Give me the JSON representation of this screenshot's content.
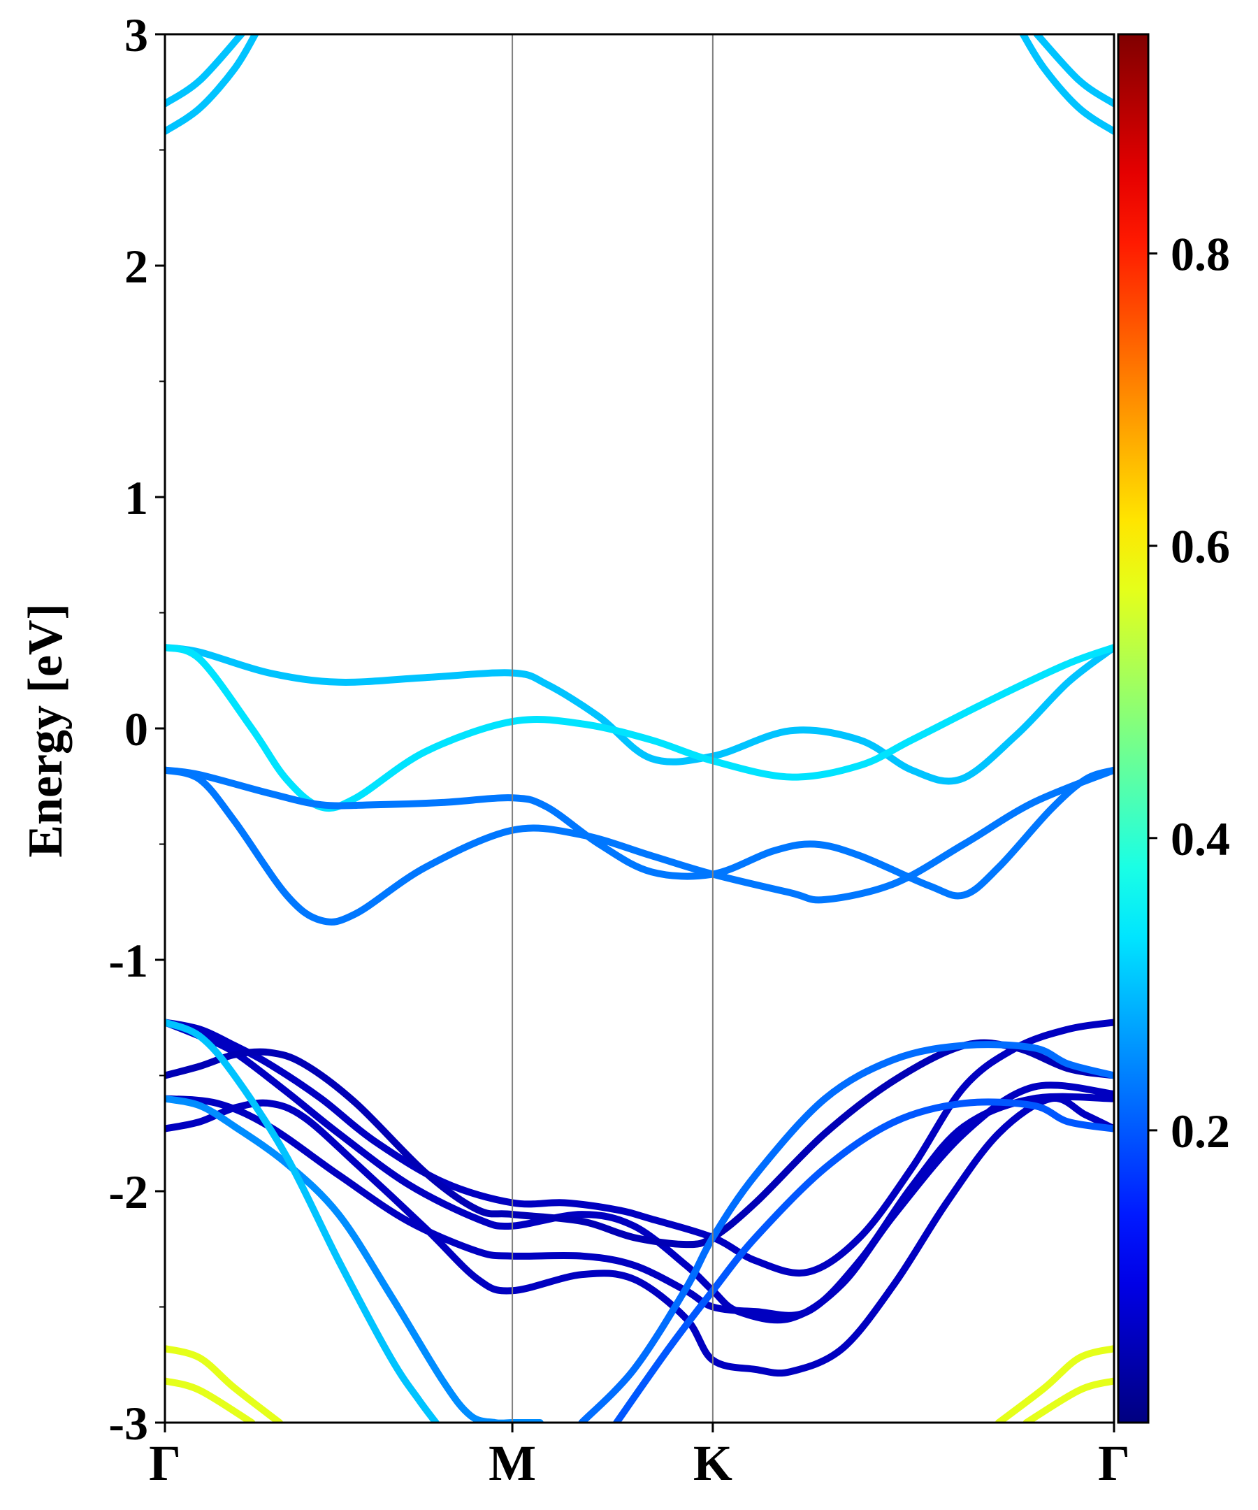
{
  "chart_data": {
    "type": "line",
    "title": "",
    "ylabel": "Energy [eV]",
    "xlabel": "",
    "ylim": [
      -3,
      3
    ],
    "x_ticks": [
      {
        "label": "Γ",
        "x": 0.0
      },
      {
        "label": "M",
        "x": 1.0
      },
      {
        "label": "K",
        "x": 1.577
      },
      {
        "label": "Γ",
        "x": 2.732
      }
    ],
    "y_ticks": [
      -3,
      -2,
      -1,
      0,
      1,
      2,
      3
    ],
    "y_tick_labels": [
      "-3",
      "-2",
      "-1",
      "0",
      "1",
      "2",
      "3"
    ],
    "grid": false,
    "vertical_lines_at": [
      1.0,
      1.577
    ],
    "colorbar": {
      "colormap": "jet",
      "range": [
        0.0,
        0.95
      ],
      "ticks": [
        0.2,
        0.4,
        0.6,
        0.8
      ],
      "tick_labels": [
        "0.2",
        "0.4",
        "0.6",
        "0.8"
      ]
    },
    "series": [
      {
        "weight": 0.3,
        "points": [
          [
            0.0,
            2.58
          ],
          [
            0.1,
            2.68
          ],
          [
            0.2,
            2.85
          ],
          [
            0.26,
            3.0
          ]
        ]
      },
      {
        "weight": 0.3,
        "points": [
          [
            0.0,
            2.7
          ],
          [
            0.1,
            2.8
          ],
          [
            0.22,
            3.0
          ]
        ]
      },
      {
        "weight": 0.3,
        "points": [
          [
            2.732,
            2.58
          ],
          [
            2.632,
            2.68
          ],
          [
            2.532,
            2.85
          ],
          [
            2.47,
            3.0
          ]
        ]
      },
      {
        "weight": 0.3,
        "points": [
          [
            2.732,
            2.7
          ],
          [
            2.632,
            2.8
          ],
          [
            2.51,
            3.0
          ]
        ]
      },
      {
        "weight": 0.3,
        "points": [
          [
            0.0,
            0.35
          ],
          [
            0.1,
            0.33
          ],
          [
            0.3,
            0.24
          ],
          [
            0.5,
            0.2
          ],
          [
            0.75,
            0.22
          ],
          [
            1.0,
            0.24
          ],
          [
            1.1,
            0.19
          ],
          [
            1.25,
            0.05
          ],
          [
            1.4,
            -0.13
          ],
          [
            1.577,
            -0.12
          ],
          [
            1.8,
            -0.01
          ],
          [
            2.0,
            -0.05
          ],
          [
            2.15,
            -0.18
          ],
          [
            2.29,
            -0.22
          ],
          [
            2.45,
            -0.03
          ],
          [
            2.6,
            0.2
          ],
          [
            2.732,
            0.35
          ]
        ]
      },
      {
        "weight": 0.33,
        "points": [
          [
            0.0,
            0.35
          ],
          [
            0.1,
            0.3
          ],
          [
            0.25,
            0.0
          ],
          [
            0.35,
            -0.22
          ],
          [
            0.45,
            -0.34
          ],
          [
            0.55,
            -0.3
          ],
          [
            0.75,
            -0.1
          ],
          [
            1.0,
            0.03
          ],
          [
            1.2,
            0.02
          ],
          [
            1.4,
            -0.05
          ],
          [
            1.577,
            -0.14
          ],
          [
            1.8,
            -0.21
          ],
          [
            2.0,
            -0.16
          ],
          [
            2.15,
            -0.05
          ],
          [
            2.4,
            0.14
          ],
          [
            2.6,
            0.28
          ],
          [
            2.732,
            0.35
          ]
        ]
      },
      {
        "weight": 0.23,
        "points": [
          [
            0.0,
            -0.18
          ],
          [
            0.1,
            -0.2
          ],
          [
            0.3,
            -0.28
          ],
          [
            0.45,
            -0.33
          ],
          [
            0.6,
            -0.33
          ],
          [
            0.8,
            -0.32
          ],
          [
            1.0,
            -0.3
          ],
          [
            1.1,
            -0.34
          ],
          [
            1.25,
            -0.5
          ],
          [
            1.4,
            -0.62
          ],
          [
            1.577,
            -0.63
          ],
          [
            1.75,
            -0.53
          ],
          [
            1.87,
            -0.5
          ],
          [
            2.0,
            -0.55
          ],
          [
            2.2,
            -0.68
          ],
          [
            2.3,
            -0.72
          ],
          [
            2.4,
            -0.6
          ],
          [
            2.55,
            -0.35
          ],
          [
            2.65,
            -0.22
          ],
          [
            2.732,
            -0.18
          ]
        ]
      },
      {
        "weight": 0.23,
        "points": [
          [
            0.0,
            -0.18
          ],
          [
            0.1,
            -0.22
          ],
          [
            0.2,
            -0.4
          ],
          [
            0.35,
            -0.72
          ],
          [
            0.45,
            -0.83
          ],
          [
            0.55,
            -0.8
          ],
          [
            0.75,
            -0.6
          ],
          [
            1.0,
            -0.44
          ],
          [
            1.2,
            -0.46
          ],
          [
            1.4,
            -0.55
          ],
          [
            1.577,
            -0.63
          ],
          [
            1.8,
            -0.71
          ],
          [
            1.9,
            -0.74
          ],
          [
            2.1,
            -0.67
          ],
          [
            2.3,
            -0.5
          ],
          [
            2.5,
            -0.32
          ],
          [
            2.732,
            -0.18
          ]
        ]
      },
      {
        "weight": 0.06,
        "points": [
          [
            0.0,
            -1.27
          ],
          [
            0.1,
            -1.3
          ],
          [
            0.2,
            -1.37
          ],
          [
            0.3,
            -1.45
          ],
          [
            0.45,
            -1.6
          ],
          [
            0.6,
            -1.78
          ],
          [
            0.8,
            -1.96
          ],
          [
            1.0,
            -2.05
          ],
          [
            1.15,
            -2.05
          ],
          [
            1.3,
            -2.08
          ],
          [
            1.4,
            -2.12
          ],
          [
            1.577,
            -2.2
          ],
          [
            1.7,
            -2.3
          ],
          [
            1.85,
            -2.35
          ],
          [
            2.0,
            -2.2
          ],
          [
            2.15,
            -1.9
          ],
          [
            2.3,
            -1.55
          ],
          [
            2.45,
            -1.38
          ],
          [
            2.6,
            -1.3
          ],
          [
            2.732,
            -1.27
          ]
        ]
      },
      {
        "weight": 0.06,
        "points": [
          [
            0.0,
            -1.27
          ],
          [
            0.1,
            -1.33
          ],
          [
            0.2,
            -1.4
          ],
          [
            0.35,
            -1.57
          ],
          [
            0.5,
            -1.75
          ],
          [
            0.7,
            -1.97
          ],
          [
            0.9,
            -2.12
          ],
          [
            1.0,
            -2.15
          ],
          [
            1.2,
            -2.1
          ],
          [
            1.35,
            -2.15
          ],
          [
            1.5,
            -2.32
          ],
          [
            1.577,
            -2.43
          ],
          [
            1.65,
            -2.52
          ],
          [
            1.8,
            -2.55
          ],
          [
            1.95,
            -2.4
          ],
          [
            2.1,
            -2.1
          ],
          [
            2.3,
            -1.75
          ],
          [
            2.5,
            -1.55
          ],
          [
            2.732,
            -1.58
          ]
        ]
      },
      {
        "weight": 0.05,
        "points": [
          [
            0.0,
            -1.5
          ],
          [
            0.1,
            -1.46
          ],
          [
            0.2,
            -1.41
          ],
          [
            0.3,
            -1.4
          ],
          [
            0.4,
            -1.45
          ],
          [
            0.55,
            -1.62
          ],
          [
            0.75,
            -1.92
          ],
          [
            0.9,
            -2.08
          ],
          [
            1.0,
            -2.1
          ],
          [
            1.2,
            -2.13
          ],
          [
            1.35,
            -2.2
          ],
          [
            1.5,
            -2.23
          ],
          [
            1.577,
            -2.2
          ],
          [
            1.7,
            -2.05
          ],
          [
            1.9,
            -1.75
          ],
          [
            2.1,
            -1.52
          ],
          [
            2.3,
            -1.37
          ],
          [
            2.45,
            -1.38
          ],
          [
            2.6,
            -1.47
          ],
          [
            2.732,
            -1.5
          ]
        ]
      },
      {
        "weight": 0.06,
        "points": [
          [
            0.0,
            -1.6
          ],
          [
            0.15,
            -1.62
          ],
          [
            0.3,
            -1.72
          ],
          [
            0.5,
            -1.93
          ],
          [
            0.7,
            -2.13
          ],
          [
            0.9,
            -2.26
          ],
          [
            1.0,
            -2.28
          ],
          [
            1.2,
            -2.28
          ],
          [
            1.35,
            -2.32
          ],
          [
            1.5,
            -2.43
          ],
          [
            1.577,
            -2.5
          ],
          [
            1.7,
            -2.52
          ],
          [
            1.85,
            -2.52
          ],
          [
            2.0,
            -2.3
          ],
          [
            2.15,
            -1.98
          ],
          [
            2.3,
            -1.72
          ],
          [
            2.5,
            -1.6
          ],
          [
            2.732,
            -1.6
          ]
        ]
      },
      {
        "weight": 0.06,
        "points": [
          [
            0.0,
            -1.73
          ],
          [
            0.1,
            -1.7
          ],
          [
            0.2,
            -1.64
          ],
          [
            0.3,
            -1.62
          ],
          [
            0.4,
            -1.68
          ],
          [
            0.55,
            -1.88
          ],
          [
            0.75,
            -2.16
          ],
          [
            0.9,
            -2.38
          ],
          [
            1.0,
            -2.43
          ],
          [
            1.2,
            -2.36
          ],
          [
            1.35,
            -2.38
          ],
          [
            1.5,
            -2.55
          ],
          [
            1.577,
            -2.73
          ],
          [
            1.7,
            -2.77
          ],
          [
            1.8,
            -2.78
          ],
          [
            1.95,
            -2.68
          ],
          [
            2.1,
            -2.4
          ],
          [
            2.25,
            -2.05
          ],
          [
            2.4,
            -1.75
          ],
          [
            2.55,
            -1.6
          ],
          [
            2.65,
            -1.67
          ],
          [
            2.732,
            -1.73
          ]
        ]
      },
      {
        "weight": 0.25,
        "points": [
          [
            0.0,
            -1.6
          ],
          [
            0.1,
            -1.63
          ],
          [
            0.2,
            -1.72
          ],
          [
            0.35,
            -1.88
          ],
          [
            0.5,
            -2.1
          ],
          [
            0.65,
            -2.45
          ],
          [
            0.8,
            -2.82
          ],
          [
            0.88,
            -2.97
          ],
          [
            0.95,
            -3.0
          ],
          [
            1.0,
            -3.0
          ],
          [
            1.05,
            -3.0
          ],
          [
            1.08,
            -3.0
          ]
        ]
      },
      {
        "weight": 0.3,
        "points": [
          [
            0.0,
            -1.27
          ],
          [
            0.1,
            -1.33
          ],
          [
            0.2,
            -1.5
          ],
          [
            0.35,
            -1.85
          ],
          [
            0.5,
            -2.3
          ],
          [
            0.65,
            -2.72
          ],
          [
            0.73,
            -2.9
          ],
          [
            0.78,
            -3.0
          ]
        ]
      },
      {
        "weight": 0.22,
        "points": [
          [
            1.2,
            -3.0
          ],
          [
            1.35,
            -2.77
          ],
          [
            1.5,
            -2.42
          ],
          [
            1.577,
            -2.2
          ],
          [
            1.7,
            -1.93
          ],
          [
            1.9,
            -1.6
          ],
          [
            2.1,
            -1.43
          ],
          [
            2.3,
            -1.37
          ],
          [
            2.5,
            -1.38
          ],
          [
            2.6,
            -1.45
          ],
          [
            2.732,
            -1.5
          ]
        ]
      },
      {
        "weight": 0.2,
        "points": [
          [
            1.3,
            -3.0
          ],
          [
            1.45,
            -2.68
          ],
          [
            1.577,
            -2.43
          ],
          [
            1.7,
            -2.2
          ],
          [
            1.9,
            -1.9
          ],
          [
            2.1,
            -1.7
          ],
          [
            2.3,
            -1.62
          ],
          [
            2.5,
            -1.63
          ],
          [
            2.6,
            -1.7
          ],
          [
            2.732,
            -1.73
          ]
        ]
      },
      {
        "weight": 0.57,
        "points": [
          [
            0.0,
            -2.68
          ],
          [
            0.1,
            -2.72
          ],
          [
            0.2,
            -2.85
          ],
          [
            0.33,
            -3.0
          ]
        ]
      },
      {
        "weight": 0.57,
        "points": [
          [
            0.0,
            -2.82
          ],
          [
            0.1,
            -2.86
          ],
          [
            0.25,
            -3.0
          ]
        ]
      },
      {
        "weight": 0.57,
        "points": [
          [
            2.732,
            -2.68
          ],
          [
            2.632,
            -2.72
          ],
          [
            2.532,
            -2.85
          ],
          [
            2.4,
            -3.0
          ]
        ]
      },
      {
        "weight": 0.57,
        "points": [
          [
            2.732,
            -2.82
          ],
          [
            2.632,
            -2.86
          ],
          [
            2.48,
            -3.0
          ]
        ]
      }
    ]
  }
}
